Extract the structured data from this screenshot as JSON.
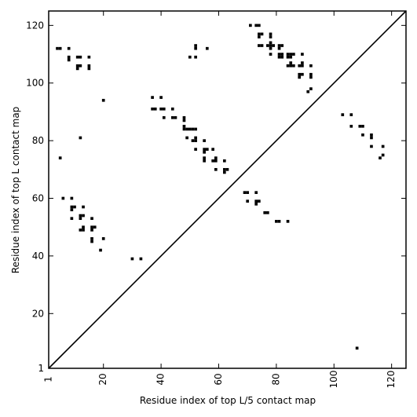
{
  "chart_data": {
    "type": "scatter",
    "title": "",
    "xlabel": "Residue index of top L/5 contact map",
    "ylabel": "Residue index of top L contact map",
    "xlim": [
      1,
      125
    ],
    "ylim": [
      1,
      125
    ],
    "xticks": [
      1,
      20,
      40,
      60,
      80,
      100,
      120
    ],
    "yticks": [
      1,
      20,
      40,
      60,
      80,
      100,
      120
    ],
    "x_tick_labels": [
      "1",
      "20",
      "40",
      "60",
      "80",
      "100",
      "120"
    ],
    "y_tick_labels": [
      "1",
      "20",
      "40",
      "60",
      "80",
      "100",
      "120"
    ],
    "grid": false,
    "legend": "none",
    "marker_color": "#000000",
    "diagonal": true,
    "series": [
      {
        "values": [
          [
            4,
            112
          ],
          [
            5,
            112
          ],
          [
            8,
            112
          ],
          [
            8,
            109
          ],
          [
            8,
            108
          ],
          [
            11,
            109
          ],
          [
            12,
            109
          ],
          [
            11,
            106
          ],
          [
            12,
            106
          ],
          [
            11,
            105
          ],
          [
            15,
            109
          ],
          [
            15,
            106
          ],
          [
            15,
            105
          ],
          [
            20,
            94
          ],
          [
            12,
            81
          ],
          [
            5,
            74
          ],
          [
            6,
            60
          ],
          [
            9,
            60
          ],
          [
            9,
            57
          ],
          [
            10,
            57
          ],
          [
            9,
            56
          ],
          [
            9,
            53
          ],
          [
            12,
            54
          ],
          [
            13,
            54
          ],
          [
            12,
            53
          ],
          [
            13,
            57
          ],
          [
            16,
            53
          ],
          [
            12,
            49
          ],
          [
            13,
            50
          ],
          [
            13,
            49
          ],
          [
            16,
            50
          ],
          [
            17,
            50
          ],
          [
            16,
            49
          ],
          [
            16,
            46
          ],
          [
            16,
            45
          ],
          [
            20,
            46
          ],
          [
            19,
            42
          ],
          [
            30,
            39
          ],
          [
            33,
            39
          ],
          [
            37,
            95
          ],
          [
            40,
            95
          ],
          [
            37,
            91
          ],
          [
            38,
            91
          ],
          [
            40,
            91
          ],
          [
            41,
            91
          ],
          [
            41,
            88
          ],
          [
            44,
            91
          ],
          [
            44,
            88
          ],
          [
            45,
            88
          ],
          [
            48,
            88
          ],
          [
            48,
            87
          ],
          [
            48,
            85
          ],
          [
            48,
            84
          ],
          [
            49,
            84
          ],
          [
            50,
            84
          ],
          [
            49,
            81
          ],
          [
            51,
            84
          ],
          [
            52,
            84
          ],
          [
            51,
            80
          ],
          [
            52,
            80
          ],
          [
            52,
            81
          ],
          [
            52,
            77
          ],
          [
            55,
            80
          ],
          [
            55,
            77
          ],
          [
            56,
            77
          ],
          [
            55,
            76
          ],
          [
            55,
            74
          ],
          [
            55,
            73
          ],
          [
            58,
            77
          ],
          [
            58,
            73
          ],
          [
            59,
            73
          ],
          [
            59,
            74
          ],
          [
            59,
            70
          ],
          [
            62,
            73
          ],
          [
            62,
            70
          ],
          [
            63,
            70
          ],
          [
            62,
            69
          ],
          [
            50,
            109
          ],
          [
            52,
            109
          ],
          [
            52,
            112
          ],
          [
            52,
            113
          ],
          [
            56,
            112
          ],
          [
            69,
            62
          ],
          [
            70,
            62
          ],
          [
            73,
            62
          ],
          [
            70,
            59
          ],
          [
            73,
            59
          ],
          [
            74,
            59
          ],
          [
            73,
            58
          ],
          [
            76,
            55
          ],
          [
            77,
            55
          ],
          [
            80,
            52
          ],
          [
            81,
            52
          ],
          [
            84,
            52
          ],
          [
            71,
            120
          ],
          [
            73,
            120
          ],
          [
            74,
            120
          ],
          [
            74,
            117
          ],
          [
            75,
            117
          ],
          [
            74,
            116
          ],
          [
            74,
            113
          ],
          [
            75,
            113
          ],
          [
            78,
            117
          ],
          [
            78,
            116
          ],
          [
            77,
            113
          ],
          [
            78,
            113
          ],
          [
            78,
            114
          ],
          [
            79,
            113
          ],
          [
            78,
            110
          ],
          [
            78,
            112
          ],
          [
            81,
            113
          ],
          [
            82,
            113
          ],
          [
            81,
            112
          ],
          [
            81,
            110
          ],
          [
            82,
            110
          ],
          [
            81,
            109
          ],
          [
            82,
            109
          ],
          [
            84,
            110
          ],
          [
            85,
            110
          ],
          [
            86,
            110
          ],
          [
            84,
            109
          ],
          [
            85,
            109
          ],
          [
            84,
            106
          ],
          [
            85,
            106
          ],
          [
            86,
            106
          ],
          [
            85,
            107
          ],
          [
            88,
            106
          ],
          [
            89,
            106
          ],
          [
            89,
            107
          ],
          [
            89,
            110
          ],
          [
            92,
            106
          ],
          [
            88,
            103
          ],
          [
            89,
            103
          ],
          [
            88,
            102
          ],
          [
            92,
            103
          ],
          [
            92,
            102
          ],
          [
            92,
            98
          ],
          [
            91,
            97
          ],
          [
            103,
            89
          ],
          [
            106,
            89
          ],
          [
            106,
            85
          ],
          [
            109,
            85
          ],
          [
            110,
            85
          ],
          [
            110,
            82
          ],
          [
            113,
            82
          ],
          [
            113,
            81
          ],
          [
            113,
            78
          ],
          [
            117,
            78
          ],
          [
            117,
            75
          ],
          [
            116,
            74
          ],
          [
            108,
            8
          ]
        ]
      }
    ]
  }
}
